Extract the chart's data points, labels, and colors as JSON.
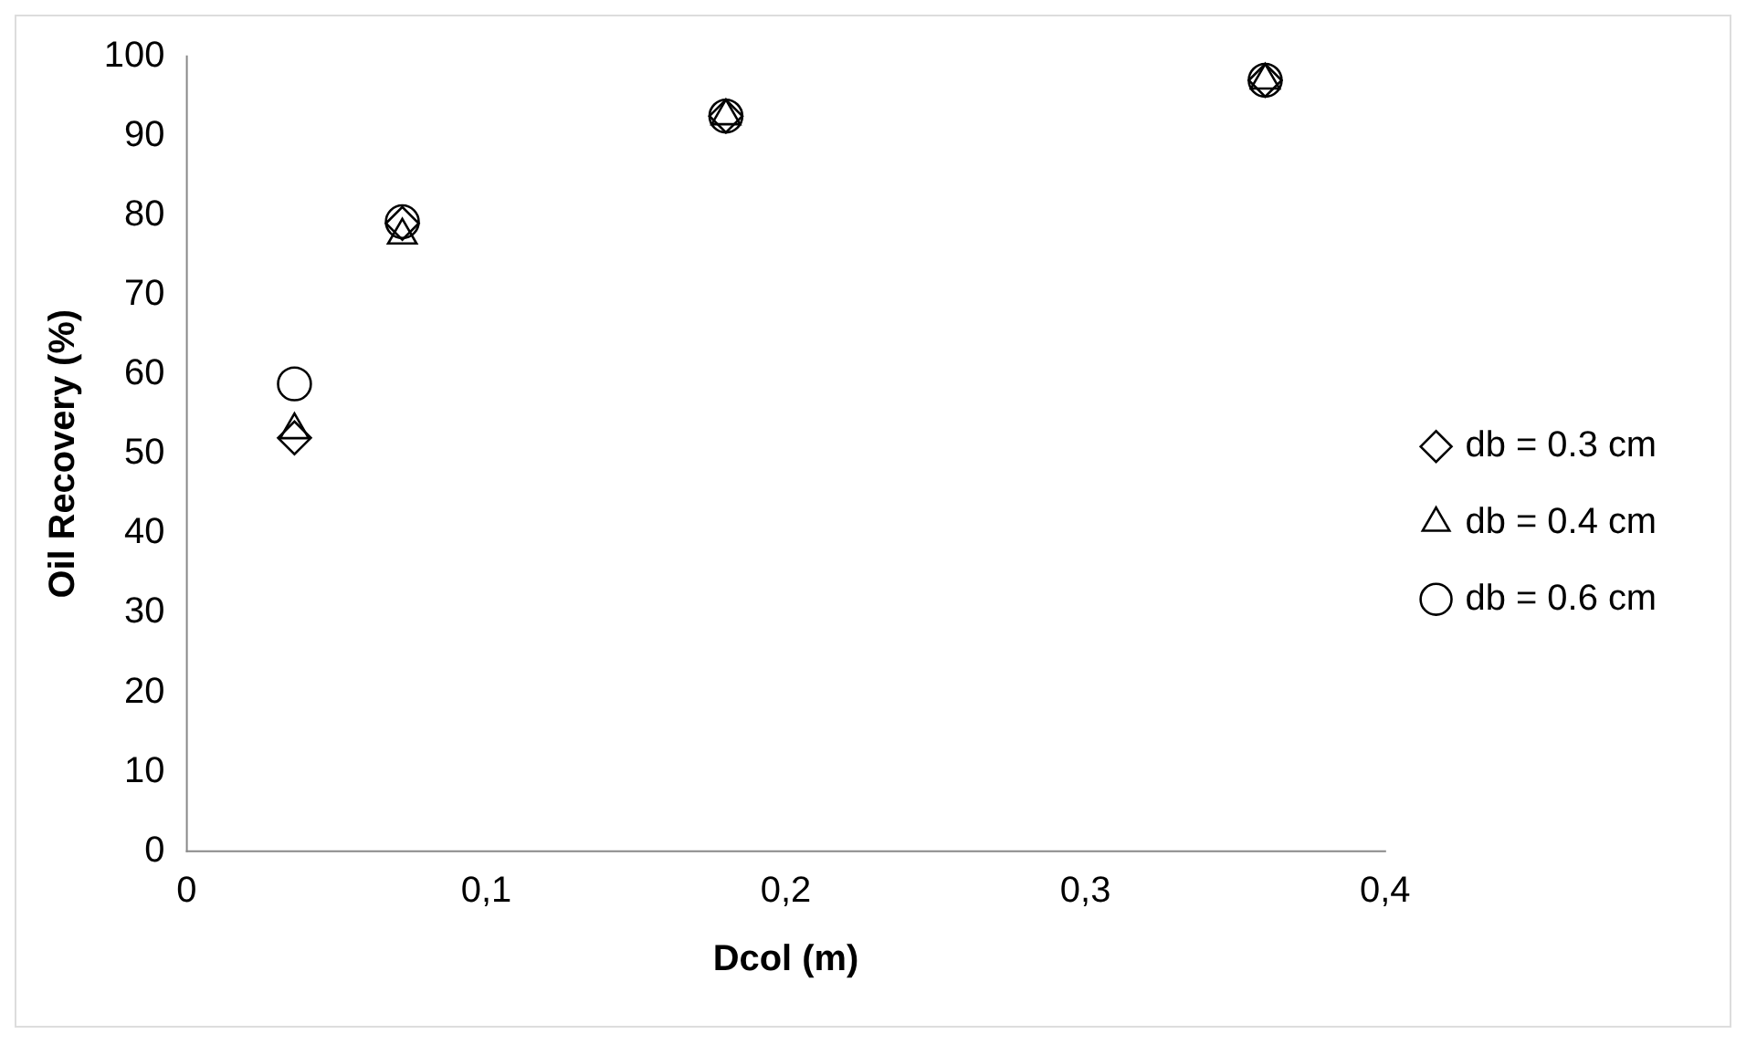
{
  "chart_data": {
    "type": "scatter",
    "xlabel": "Dcol (m)",
    "ylabel": "Oil Recovery (%)",
    "x": [
      0.036,
      0.072,
      0.18,
      0.36
    ],
    "series": [
      {
        "name": "db = 0.3 cm",
        "color": "#000000",
        "marker": "diamond",
        "values": [
          52,
          79,
          92.5,
          97
        ]
      },
      {
        "name": "db = 0.4 cm",
        "color": "#000000",
        "marker": "triangle",
        "values": [
          53,
          77.5,
          92.5,
          97
        ]
      },
      {
        "name": "db = 0.6 cm",
        "color": "#000000",
        "marker": "circle",
        "values": [
          58.8,
          79.2,
          92.5,
          97
        ]
      }
    ],
    "xlim": [
      0,
      0.4
    ],
    "xticks": [
      0,
      {
        "value": 0.1,
        "label": "0,1"
      },
      {
        "value": 0.2,
        "label": "0,2"
      },
      {
        "value": 0.3,
        "label": "0,3"
      },
      {
        "value": 0.4,
        "label": "0,4"
      }
    ],
    "ylim": [
      0,
      100
    ],
    "yticks": [
      0,
      10,
      20,
      30,
      40,
      50,
      60,
      70,
      80,
      90,
      100
    ],
    "grid": false,
    "legend": "right"
  }
}
